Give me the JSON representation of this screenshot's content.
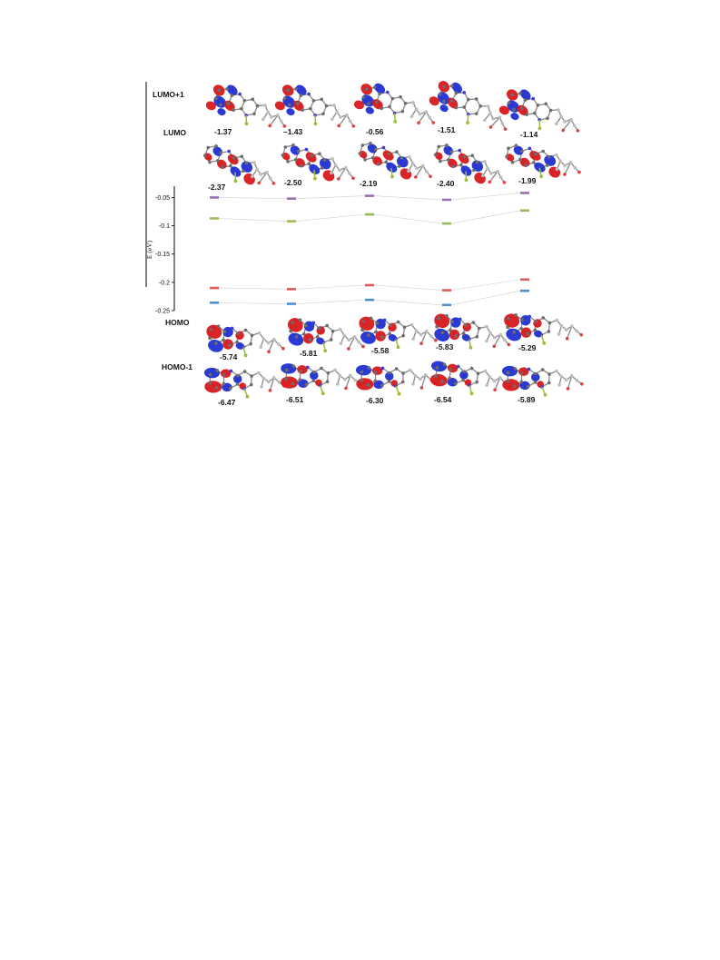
{
  "rows": {
    "lumo1": {
      "label": "LUMO+1",
      "energies": [
        "-1.37",
        "–1.43",
        "-0.56",
        "-1.51",
        "-1.14"
      ]
    },
    "lumo": {
      "label": "LUMO",
      "energies": [
        "-2.37",
        "-2.50",
        "-2.19",
        "-2.40",
        "-1.99"
      ]
    },
    "homo": {
      "label": "HOMO",
      "energies": [
        "-5.74",
        "-5.81",
        "-5.58",
        "-5.83",
        "-5.29"
      ]
    },
    "homo1": {
      "label": "HOMO-1",
      "energies": [
        "-6.47",
        "-6.51",
        "-6.30",
        "-6.54",
        "-5.89"
      ]
    }
  },
  "chart_data": {
    "type": "line",
    "ylabel": "E (eV)",
    "ylim": [
      -0.25,
      -0.03
    ],
    "yticks": [
      "-0.05",
      "-0.1",
      "-0.15",
      "-0.2",
      "-0.25"
    ],
    "ytick_values": [
      -0.05,
      -0.1,
      -0.15,
      -0.2,
      -0.25
    ],
    "x": [
      1,
      2,
      3,
      4,
      5
    ],
    "series": [
      {
        "values": [
          -0.05,
          -0.052,
          -0.047,
          -0.054,
          -0.042
        ],
        "color": "#9b6fb0"
      },
      {
        "values": [
          -0.087,
          -0.092,
          -0.08,
          -0.096,
          -0.073
        ],
        "color": "#9bbb59"
      },
      {
        "values": [
          -0.21,
          -0.212,
          -0.205,
          -0.214,
          -0.195
        ],
        "color": "#e05a5a"
      },
      {
        "values": [
          -0.236,
          -0.238,
          -0.231,
          -0.24,
          -0.215
        ],
        "color": "#4f8fd0"
      }
    ]
  },
  "colors": {
    "lobe_positive": "#d7191c",
    "lobe_negative": "#1f2fd0",
    "axis": "#000000"
  },
  "icons": {
    "orbital": "molecular-orbital-isosurface"
  }
}
